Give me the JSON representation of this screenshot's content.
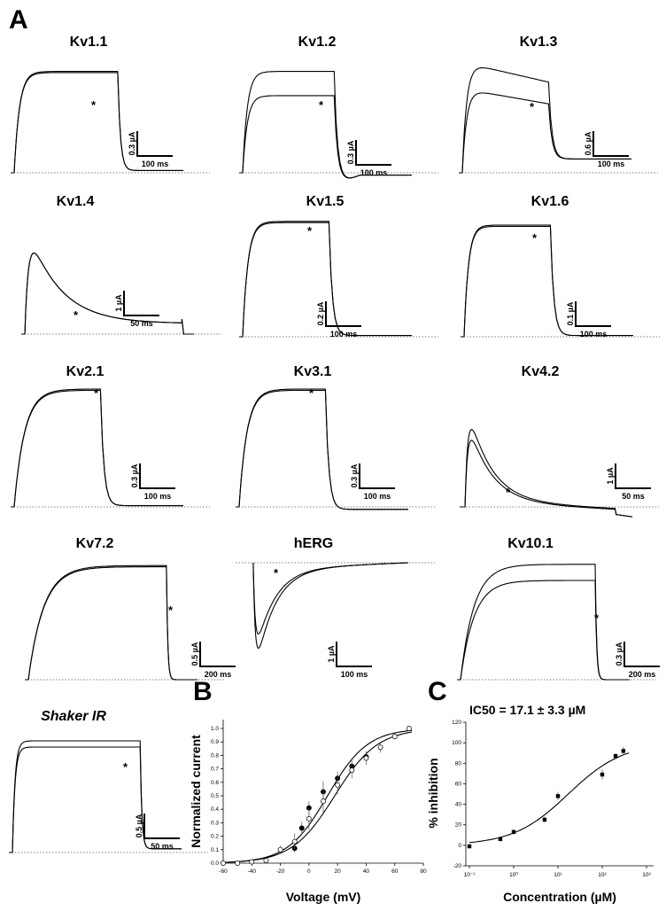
{
  "panel_labels": [
    "A",
    "B",
    "C"
  ],
  "chart_data": [
    {
      "type": "line",
      "panel": "A",
      "traces": [
        {
          "title": "Kv1.1",
          "italic": false,
          "y_scale": "0.3 µA",
          "x_scale": "100 ms",
          "shape": "steady",
          "peak": 0.88,
          "drug_peak": 0.87,
          "tail": 0.02,
          "below": 0,
          "tau": 0.05,
          "p_end": 0.62
        },
        {
          "title": "Kv1.2",
          "italic": false,
          "y_scale": "0.3 µA",
          "x_scale": "100 ms",
          "shape": "steady",
          "peak": 0.88,
          "drug_peak": 0.67,
          "tail": -0.02,
          "below": 0.04,
          "tau": 0.05,
          "p_end": 0.55
        },
        {
          "title": "Kv1.3",
          "italic": false,
          "y_scale": "0.6 µA",
          "x_scale": "100 ms",
          "shape": "inact",
          "peak": 0.96,
          "drug_peak": 0.73,
          "tail": 0.12,
          "below": 0,
          "tau": 0.05,
          "p_end": 0.52
        },
        {
          "title": "Kv1.4",
          "italic": false,
          "y_scale": "1 µA",
          "x_scale": "50 ms",
          "shape": "fast",
          "peak": 0.94,
          "drug_peak": 0.94,
          "tail": 0.09,
          "below": 0,
          "tau": 0.2,
          "p_end": 0.93
        },
        {
          "title": "Kv1.5",
          "italic": false,
          "y_scale": "0.2 µA",
          "x_scale": "100 ms",
          "shape": "steady",
          "peak": 0.93,
          "drug_peak": 0.92,
          "tail": 0.01,
          "below": 0,
          "tau": 0.06,
          "p_end": 0.52
        },
        {
          "title": "Kv1.6",
          "italic": false,
          "y_scale": "0.1 µA",
          "x_scale": "100 ms",
          "shape": "steady",
          "peak": 0.9,
          "drug_peak": 0.89,
          "tail": 0.01,
          "below": 0,
          "tau": 0.05,
          "p_end": 0.52
        },
        {
          "title": "Kv2.1",
          "italic": false,
          "y_scale": "0.3 µA",
          "x_scale": "100 ms",
          "shape": "steady",
          "peak": 0.95,
          "drug_peak": 0.94,
          "tail": 0.01,
          "below": 0,
          "tau": 0.12,
          "p_end": 0.52
        },
        {
          "title": "Kv3.1",
          "italic": false,
          "y_scale": "0.3 µA",
          "x_scale": "100 ms",
          "shape": "steady",
          "peak": 0.95,
          "drug_peak": 0.94,
          "tail": -0.02,
          "below": 0,
          "tau": 0.09,
          "p_end": 0.52
        },
        {
          "title": "Kv4.2",
          "italic": false,
          "y_scale": "1 µA",
          "x_scale": "50 ms",
          "shape": "kv42",
          "peak": 0.93,
          "drug_peak": 0.8,
          "tail": -0.06,
          "below": 0,
          "tau": 0.15,
          "p_end": 0.9
        },
        {
          "title": "Kv7.2",
          "italic": false,
          "y_scale": "0.5 µA",
          "x_scale": "200 ms",
          "shape": "steady",
          "peak": 0.92,
          "drug_peak": 0.91,
          "tail": 0.0,
          "below": 0,
          "tau": 0.11,
          "p_end": 0.82
        },
        {
          "title": "hERG",
          "italic": false,
          "y_scale": "1 µA",
          "x_scale": "100 ms",
          "shape": "herg",
          "peak": 0.0,
          "drug_peak": 0.0,
          "tail": 0.0,
          "below": 0,
          "tau": 0.0,
          "p_end": 1.0
        },
        {
          "title": "Kv10.1",
          "italic": false,
          "y_scale": "0.3 µA",
          "x_scale": "200 ms",
          "shape": "steady",
          "peak": 0.93,
          "drug_peak": 0.8,
          "tail": 0.0,
          "below": 0,
          "tau": 0.1,
          "p_end": 0.8
        },
        {
          "title": "Shaker IR",
          "italic": true,
          "y_scale": "0.5 µA",
          "x_scale": "50 ms",
          "shape": "steady",
          "peak": 0.9,
          "drug_peak": 0.85,
          "tail": 0.03,
          "below": 0,
          "tau": 0.02,
          "p_end": 0.76
        }
      ]
    },
    {
      "type": "scatter",
      "panel": "B",
      "xlabel": "Voltage (mV)",
      "ylabel": "Normalized current",
      "xlim": [
        -60,
        80
      ],
      "ylim": [
        0.0,
        1.0
      ],
      "x_ticks": [
        -60,
        -40,
        -20,
        0,
        20,
        40,
        60,
        80
      ],
      "y_ticks": [
        "0.0",
        "0.1",
        "0.2",
        "0.3",
        "0.4",
        "0.5",
        "0.6",
        "0.7",
        "0.8",
        "0.9",
        "1.0"
      ],
      "series": [
        {
          "marker": "filled",
          "x": [
            -10,
            -5,
            0,
            10,
            20,
            30,
            40
          ],
          "y": [
            0.11,
            0.26,
            0.41,
            0.53,
            0.63,
            0.72,
            0.79
          ],
          "err": [
            0.03,
            0.05,
            0.05,
            0.08,
            0.05,
            0.05,
            0.04
          ]
        },
        {
          "marker": "open",
          "x": [
            -60,
            -50,
            -40,
            -30,
            -20,
            -10,
            0,
            10,
            20,
            30,
            40,
            50,
            60,
            70
          ],
          "y": [
            0.0,
            0.0,
            0.01,
            0.02,
            0.1,
            0.16,
            0.33,
            0.46,
            0.58,
            0.69,
            0.78,
            0.86,
            0.94,
            1.0
          ],
          "err": [
            0,
            0,
            0,
            0,
            0.03,
            0.06,
            0.08,
            0.09,
            0.07,
            0.06,
            0.05,
            0.04,
            0.02,
            0
          ]
        }
      ],
      "fits": [
        {
          "v_half": 13,
          "k": 14
        },
        {
          "v_half": 18,
          "k": 15
        }
      ]
    },
    {
      "type": "scatter",
      "panel": "C",
      "annotation": "IC50 = 17.1 ± 3.3 µM",
      "xlabel": "Concentration (µM)",
      "ylabel": "% inhibition",
      "x_scale": "log",
      "xlim": [
        0.1,
        1000
      ],
      "ylim": [
        -20,
        120
      ],
      "y_ticks": [
        -20,
        0,
        20,
        40,
        60,
        80,
        100,
        120
      ],
      "x_tick_labels": [
        "10⁻¹",
        "10⁰",
        "10¹",
        "10²",
        "10³"
      ],
      "x": [
        0.1,
        0.5,
        1,
        5,
        10,
        100,
        200,
        300
      ],
      "y": [
        -1,
        6,
        13,
        25,
        48,
        69,
        87,
        92
      ],
      "err": [
        2,
        1.5,
        2.5,
        3,
        4,
        5,
        3,
        4
      ],
      "fit": {
        "ic50": 17.1,
        "hill": 0.7
      }
    }
  ]
}
